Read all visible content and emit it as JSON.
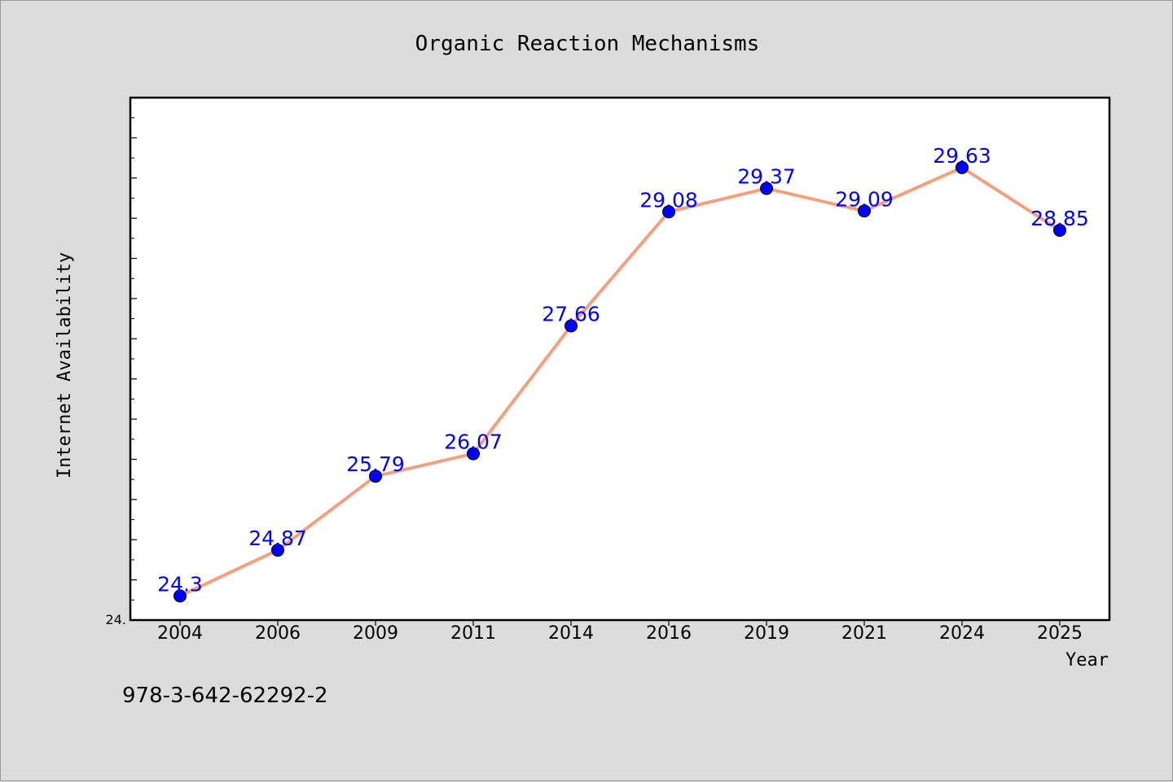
{
  "chart_data": {
    "type": "line",
    "title": "Organic Reaction Mechanisms",
    "xlabel": "Year",
    "ylabel": "Internet Availability",
    "categories": [
      "2004",
      "2006",
      "2009",
      "2011",
      "2014",
      "2016",
      "2019",
      "2021",
      "2024",
      "2025"
    ],
    "series": [
      {
        "values": [
          24.3,
          24.87,
          25.79,
          26.07,
          27.66,
          29.08,
          29.37,
          29.09,
          29.63,
          28.85
        ]
      }
    ],
    "ylim": [
      24.0,
      30.5
    ],
    "y_tick_label": "24.",
    "grid": false,
    "line_color": "#f4a07f",
    "marker_color": "#0000ff",
    "label_color": "#0000ff",
    "plot_background": "#ffffff",
    "figure_background": "#dcdcdc"
  },
  "footer": {
    "isbn": "978-3-642-62292-2"
  }
}
